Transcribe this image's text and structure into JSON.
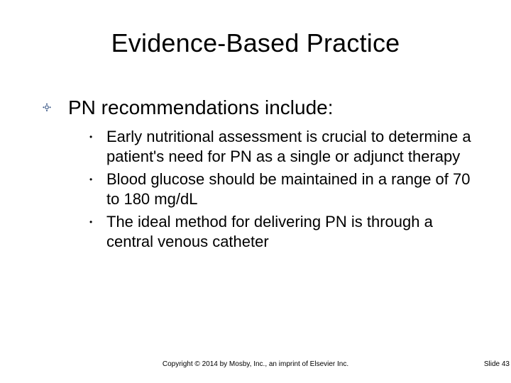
{
  "colors": {
    "background": "#ffffff",
    "text": "#000000",
    "bullet_accent": "#2b4a7d"
  },
  "typography": {
    "title_fontsize": 36,
    "lvl1_fontsize": 28,
    "lvl2_fontsize": 22,
    "footer_fontsize": 10,
    "font_family": "Arial"
  },
  "title": "Evidence-Based Practice",
  "bullets": {
    "main": {
      "glyph": "༓",
      "text": "PN recommendations include:"
    },
    "sub_glyph": "•",
    "subs": [
      "Early nutritional assessment is crucial to determine a patient's need for PN as a single or adjunct therapy",
      "Blood glucose should be maintained in a range of 70 to 180 mg/dL",
      "The ideal method for delivering PN is through a central venous catheter"
    ]
  },
  "footer": {
    "copyright": "Copyright © 2014 by Mosby, Inc., an imprint of Elsevier Inc.",
    "slide_label": "Slide 43"
  }
}
